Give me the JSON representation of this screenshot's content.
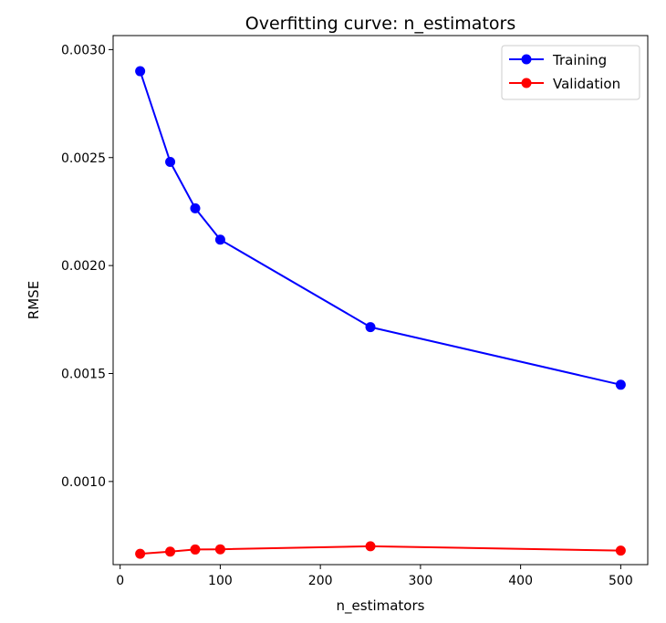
{
  "chart_data": {
    "type": "line",
    "title": "Overfitting curve: n_estimators",
    "xlabel": "n_estimators",
    "ylabel": "RMSE",
    "x": [
      20,
      50,
      75,
      100,
      250,
      500
    ],
    "xlim": [
      -7,
      527
    ],
    "ylim": [
      0.000615,
      0.003065
    ],
    "xticks": [
      0,
      100,
      200,
      300,
      400,
      500
    ],
    "xtick_labels": [
      "0",
      "100",
      "200",
      "300",
      "400",
      "500"
    ],
    "yticks": [
      0.001,
      0.0015,
      0.002,
      0.0025,
      0.003
    ],
    "ytick_labels": [
      "0.0010",
      "0.0015",
      "0.0020",
      "0.0025",
      "0.0030"
    ],
    "series": [
      {
        "name": "Training",
        "color": "#0000ff",
        "values": [
          0.0029,
          0.00248,
          0.002265,
          0.00212,
          0.001715,
          0.001448
        ]
      },
      {
        "name": "Validation",
        "color": "#ff0000",
        "values": [
          0.000665,
          0.000675,
          0.000685,
          0.000686,
          0.0007,
          0.00068
        ]
      }
    ],
    "legend": "top-right",
    "grid": false,
    "marker": "circle"
  }
}
